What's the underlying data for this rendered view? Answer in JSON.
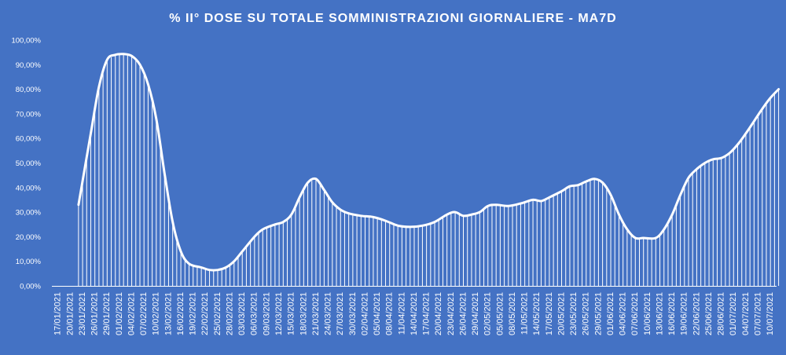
{
  "chart_data": {
    "type": "bar",
    "overlay": "line",
    "title": "% II° DOSE SU TOTALE SOMMINISTRAZIONI  GIORNALIERE  - MA7D",
    "xlabel": "",
    "ylabel": "",
    "ylim": [
      0,
      100
    ],
    "y_tick_labels": [
      "0,00%",
      "10,00%",
      "20,00%",
      "30,00%",
      "40,00%",
      "50,00%",
      "60,00%",
      "70,00%",
      "80,00%",
      "90,00%",
      "100,00%"
    ],
    "x_tick_labels": [
      "17/01/2021",
      "20/01/2021",
      "23/01/2021",
      "26/01/2021",
      "29/01/2021",
      "01/02/2021",
      "04/02/2021",
      "07/02/2021",
      "10/02/2021",
      "13/02/2021",
      "16/02/2021",
      "19/02/2021",
      "22/02/2021",
      "25/02/2021",
      "28/02/2021",
      "03/03/2021",
      "06/03/2021",
      "09/03/2021",
      "12/03/2021",
      "15/03/2021",
      "18/03/2021",
      "21/03/2021",
      "24/03/2021",
      "27/03/2021",
      "30/03/2021",
      "02/04/2021",
      "05/04/2021",
      "08/04/2021",
      "11/04/2021",
      "14/04/2021",
      "17/04/2021",
      "20/04/2021",
      "23/04/2021",
      "26/04/2021",
      "29/04/2021",
      "02/05/2021",
      "05/05/2021",
      "08/05/2021",
      "11/05/2021",
      "14/05/2021",
      "17/05/2021",
      "20/05/2021",
      "23/05/2021",
      "26/05/2021",
      "29/05/2021",
      "01/06/2021",
      "04/06/2021",
      "07/06/2021",
      "10/06/2021",
      "13/06/2021",
      "16/06/2021",
      "19/06/2021",
      "22/06/2021",
      "25/06/2021",
      "28/06/2021",
      "01/07/2021",
      "04/07/2021",
      "07/07/2021",
      "10/07/2021"
    ],
    "anchors": [
      [
        "23/01/2021",
        33
      ],
      [
        "26/01/2021",
        62
      ],
      [
        "28/01/2021",
        81
      ],
      [
        "30/01/2021",
        92
      ],
      [
        "01/02/2021",
        94
      ],
      [
        "03/02/2021",
        94.3
      ],
      [
        "05/02/2021",
        93.5
      ],
      [
        "07/02/2021",
        90
      ],
      [
        "09/02/2021",
        82
      ],
      [
        "11/02/2021",
        68
      ],
      [
        "13/02/2021",
        46
      ],
      [
        "15/02/2021",
        26
      ],
      [
        "17/02/2021",
        14
      ],
      [
        "19/02/2021",
        9
      ],
      [
        "22/02/2021",
        7.5
      ],
      [
        "24/02/2021",
        6.5
      ],
      [
        "26/02/2021",
        6.5
      ],
      [
        "28/02/2021",
        7.5
      ],
      [
        "02/03/2021",
        10
      ],
      [
        "04/03/2021",
        14
      ],
      [
        "07/03/2021",
        20
      ],
      [
        "09/03/2021",
        23
      ],
      [
        "12/03/2021",
        25
      ],
      [
        "14/03/2021",
        26
      ],
      [
        "16/03/2021",
        29
      ],
      [
        "18/03/2021",
        36
      ],
      [
        "20/03/2021",
        42
      ],
      [
        "22/03/2021",
        43.5
      ],
      [
        "24/03/2021",
        39
      ],
      [
        "26/03/2021",
        34
      ],
      [
        "28/03/2021",
        31
      ],
      [
        "30/03/2021",
        29.5
      ],
      [
        "02/04/2021",
        28.5
      ],
      [
        "05/04/2021",
        28
      ],
      [
        "08/04/2021",
        26.5
      ],
      [
        "11/04/2021",
        24.5
      ],
      [
        "14/04/2021",
        24
      ],
      [
        "17/04/2021",
        24.5
      ],
      [
        "20/04/2021",
        26
      ],
      [
        "23/04/2021",
        29
      ],
      [
        "25/04/2021",
        30
      ],
      [
        "27/04/2021",
        28.5
      ],
      [
        "29/04/2021",
        29
      ],
      [
        "01/05/2021",
        30
      ],
      [
        "03/05/2021",
        32.5
      ],
      [
        "05/05/2021",
        33
      ],
      [
        "08/05/2021",
        32.5
      ],
      [
        "11/05/2021",
        33.5
      ],
      [
        "14/05/2021",
        35
      ],
      [
        "16/05/2021",
        34.5
      ],
      [
        "18/05/2021",
        36
      ],
      [
        "21/05/2021",
        38.5
      ],
      [
        "23/05/2021",
        40.5
      ],
      [
        "25/05/2021",
        41
      ],
      [
        "27/05/2021",
        42.5
      ],
      [
        "29/05/2021",
        43.5
      ],
      [
        "31/05/2021",
        42
      ],
      [
        "02/06/2021",
        37
      ],
      [
        "04/06/2021",
        29
      ],
      [
        "06/06/2021",
        23
      ],
      [
        "08/06/2021",
        19.5
      ],
      [
        "10/06/2021",
        19.5
      ],
      [
        "13/06/2021",
        19.5
      ],
      [
        "15/06/2021",
        23
      ],
      [
        "17/06/2021",
        29
      ],
      [
        "19/06/2021",
        37
      ],
      [
        "21/06/2021",
        44
      ],
      [
        "23/06/2021",
        47.5
      ],
      [
        "25/06/2021",
        50
      ],
      [
        "27/06/2021",
        51.5
      ],
      [
        "29/06/2021",
        52
      ],
      [
        "01/07/2021",
        54
      ],
      [
        "03/07/2021",
        57.5
      ],
      [
        "05/07/2021",
        62
      ],
      [
        "07/07/2021",
        67
      ],
      [
        "09/07/2021",
        72
      ],
      [
        "11/07/2021",
        76.5
      ],
      [
        "13/07/2021",
        80
      ]
    ],
    "grid": false,
    "legend": "none"
  },
  "colors": {
    "background": "#4472c4",
    "series": "#ffffff",
    "text": "#ffffff"
  }
}
